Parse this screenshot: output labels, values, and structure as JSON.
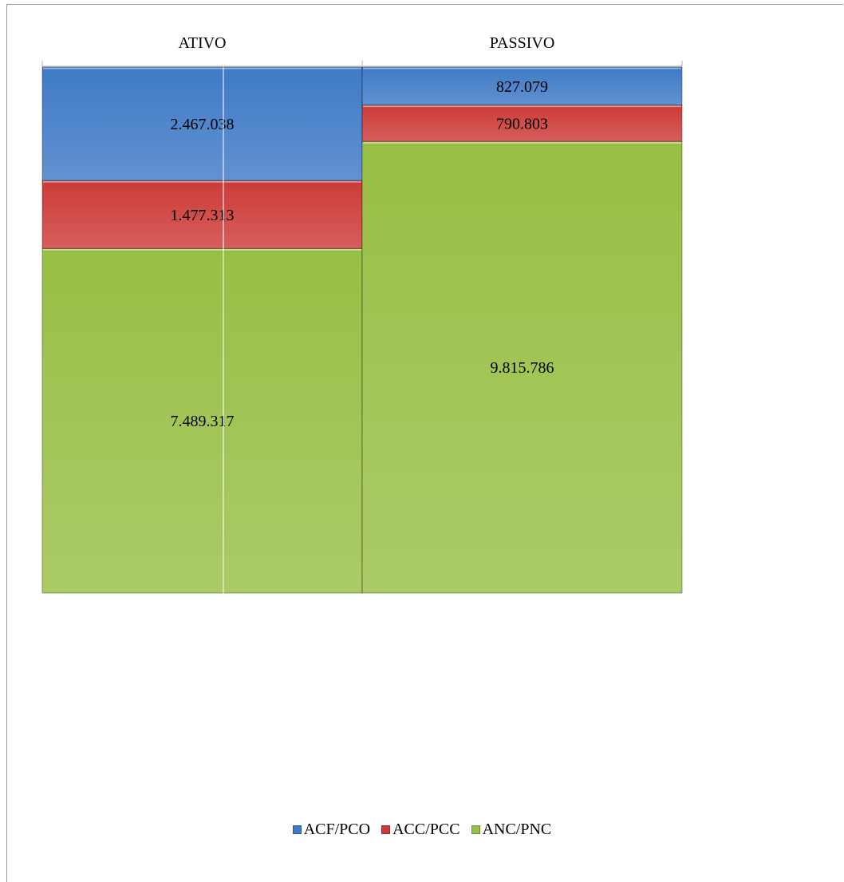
{
  "chart_data": {
    "type": "bar",
    "stacked": true,
    "categories": [
      "ATIVO",
      "PASSIVO"
    ],
    "series": [
      {
        "name": "ACF/PCO",
        "color": "#3f7ac6",
        "values": [
          2467038,
          827079
        ],
        "labels": [
          "2.467.038",
          "827.079"
        ]
      },
      {
        "name": "ACC/PCC",
        "color": "#cc3b38",
        "values": [
          1477313,
          790803
        ],
        "labels": [
          "1.477.313",
          "790.803"
        ]
      },
      {
        "name": "ANC/PNC",
        "color": "#98bf45",
        "values": [
          7489317,
          9815786
        ],
        "labels": [
          "7.489.317",
          "9.815.786"
        ]
      }
    ],
    "stack_order": "bottom-to-top: ANC/PNC, ACC/PCC, ACF/PCO",
    "category_axis_position": "top",
    "value_axis": "hidden",
    "grid": false,
    "legend_position": "bottom"
  },
  "legend": {
    "items": [
      {
        "label": "ACF/PCO",
        "color": "#3f7ac6"
      },
      {
        "label": "ACC/PCC",
        "color": "#cc3b38"
      },
      {
        "label": "ANC/PNC",
        "color": "#98bf45"
      }
    ]
  }
}
